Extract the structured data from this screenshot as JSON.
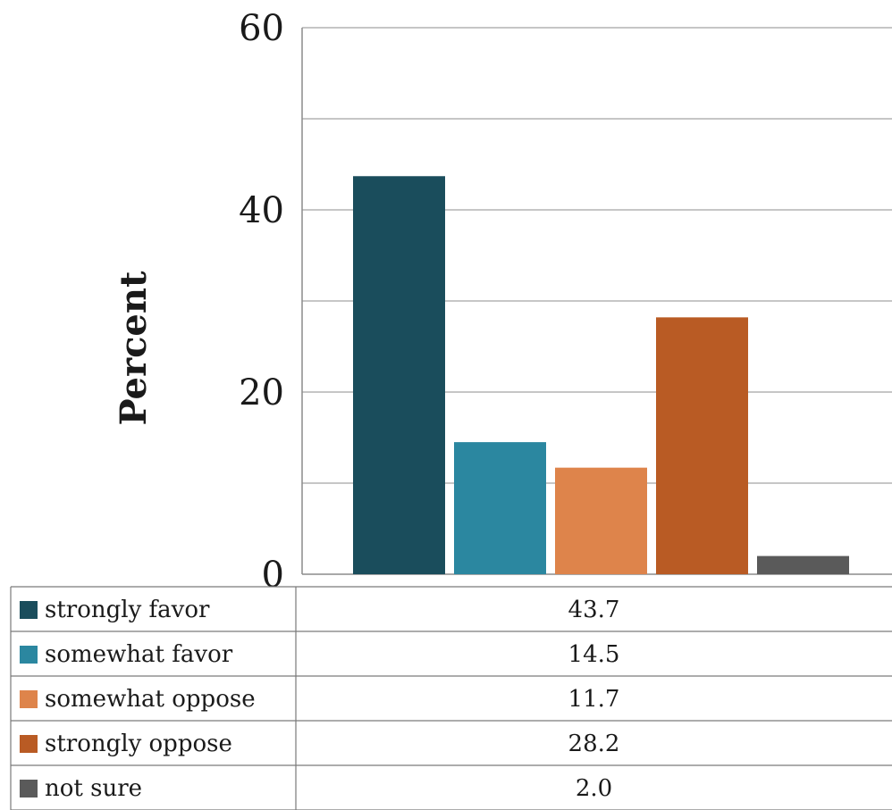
{
  "chart_data": {
    "type": "bar",
    "title": "",
    "xlabel": "",
    "ylabel": "Percent",
    "ylim": [
      0,
      60
    ],
    "yticks": [
      0,
      20,
      40,
      60
    ],
    "minor_gridlines": [
      10,
      30,
      50
    ],
    "grid": true,
    "legend": "data table below chart",
    "series": [
      {
        "name": "strongly favor",
        "value": 43.7,
        "label": "43.7",
        "color": "#1a4d5c"
      },
      {
        "name": "somewhat favor",
        "value": 14.5,
        "label": "14.5",
        "color": "#2b87a0"
      },
      {
        "name": "somewhat oppose",
        "value": 11.7,
        "label": "11.7",
        "color": "#de844b"
      },
      {
        "name": "strongly oppose",
        "value": 28.2,
        "label": "28.2",
        "color": "#b95b24"
      },
      {
        "name": "not sure",
        "value": 2.0,
        "label": "2.0",
        "color": "#5a5a5a"
      }
    ]
  }
}
